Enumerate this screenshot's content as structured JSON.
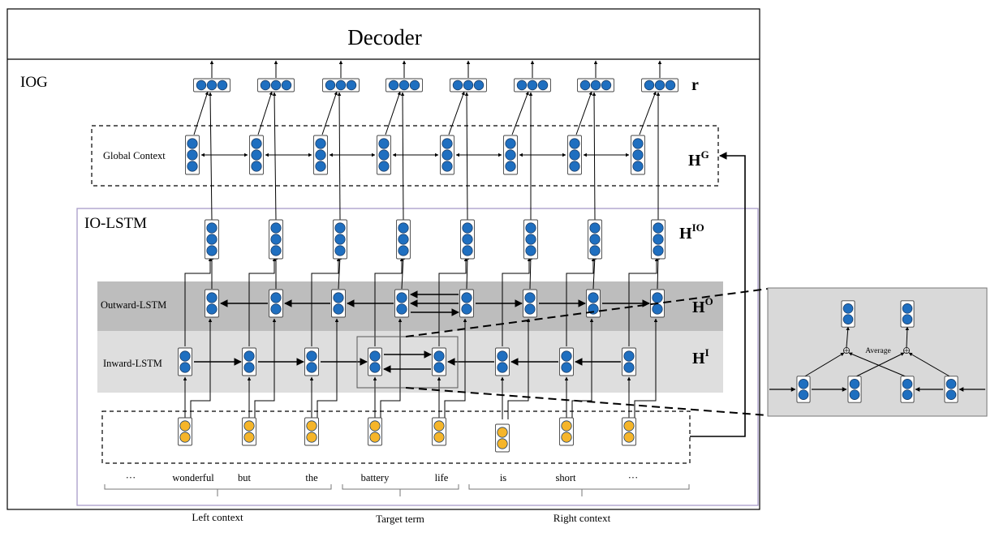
{
  "decoder": {
    "title": "Decoder"
  },
  "iog": {
    "label": "IOG",
    "r_label": "r"
  },
  "global_context": {
    "label": "Global Context",
    "hidden_label": "H",
    "hidden_sup": "G"
  },
  "io_lstm": {
    "label": "IO-LSTM",
    "hidden_label": "H",
    "hidden_sup": "IO"
  },
  "outward_lstm": {
    "label": "Outward-LSTM",
    "hidden_label": "H",
    "hidden_sup": "O"
  },
  "inward_lstm": {
    "label": "Inward-LSTM",
    "hidden_label": "H",
    "hidden_sup": "I"
  },
  "words": [
    "···",
    "wonderful",
    "but",
    "the",
    "battery",
    "life",
    "is",
    "short",
    "···"
  ],
  "groups": {
    "left": "Left context",
    "target": "Target term",
    "right": "Right context"
  },
  "zoom": {
    "average_label": "Average"
  },
  "colors": {
    "blue": "#1f6fc0",
    "yellow": "#f5b52a",
    "outward_band": "#bdbdbd",
    "inward_band": "#dedede",
    "zoom_bg": "#d9d9d9",
    "io_lstm_border": "#a89cc8"
  }
}
